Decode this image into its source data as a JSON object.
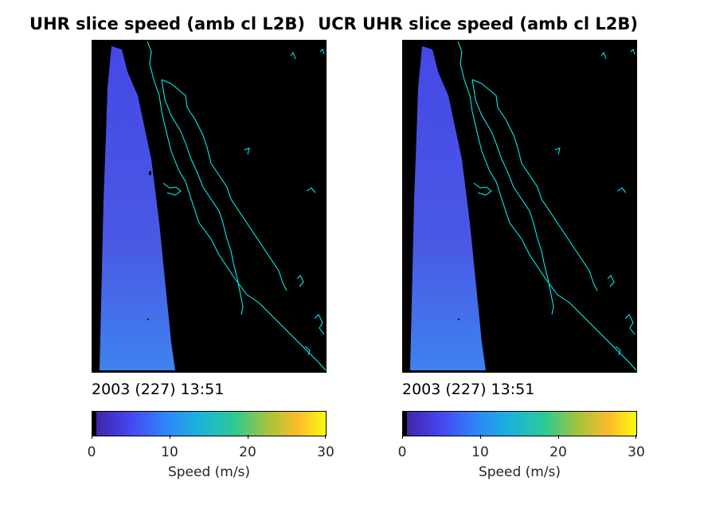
{
  "figure": {
    "panels": [
      {
        "title": "UHR slice speed (amb cl L2B)",
        "timestamp": "2003 (227) 13:51",
        "colorbar": {
          "label": "Speed (m/s)",
          "ticks": [
            "0",
            "10",
            "20",
            "30"
          ]
        }
      },
      {
        "title": "UCR UHR slice speed (amb cl L2B)",
        "timestamp": "2003 (227) 13:51",
        "colorbar": {
          "label": "Speed (m/s)",
          "ticks": [
            "0",
            "10",
            "20",
            "30"
          ]
        }
      }
    ]
  },
  "colors": {
    "background": "#000000",
    "coastline": "#00ffff",
    "swath": "#4a56e0",
    "colormap": [
      "#3e26a8",
      "#4743f0",
      "#2f83f9",
      "#19b4d9",
      "#2ec995",
      "#a6c33a",
      "#fdbb2c",
      "#f9fb0e"
    ]
  },
  "chart_data": [
    {
      "type": "heatmap",
      "title": "UHR slice speed (amb cl L2B)",
      "annotation": "2003 (227) 13:51",
      "colorbar": {
        "label": "Speed (m/s)",
        "range": [
          0,
          30
        ],
        "ticks": [
          0,
          10,
          20,
          30
        ],
        "colormap": "parula",
        "orientation": "horizontal",
        "placement": "bottom"
      },
      "axes_visible": false,
      "content": "swath of wind speed values over black background with cyan coastline",
      "speed_estimate_range": [
        2,
        6
      ]
    },
    {
      "type": "heatmap",
      "title": "UCR UHR slice speed (amb cl L2B)",
      "annotation": "2003 (227) 13:51",
      "colorbar": {
        "label": "Speed (m/s)",
        "range": [
          0,
          30
        ],
        "ticks": [
          0,
          10,
          20,
          30
        ],
        "colormap": "parula",
        "orientation": "horizontal",
        "placement": "bottom"
      },
      "axes_visible": false,
      "content": "swath of wind speed values over black background with cyan coastline",
      "speed_estimate_range": [
        2,
        6
      ]
    }
  ]
}
